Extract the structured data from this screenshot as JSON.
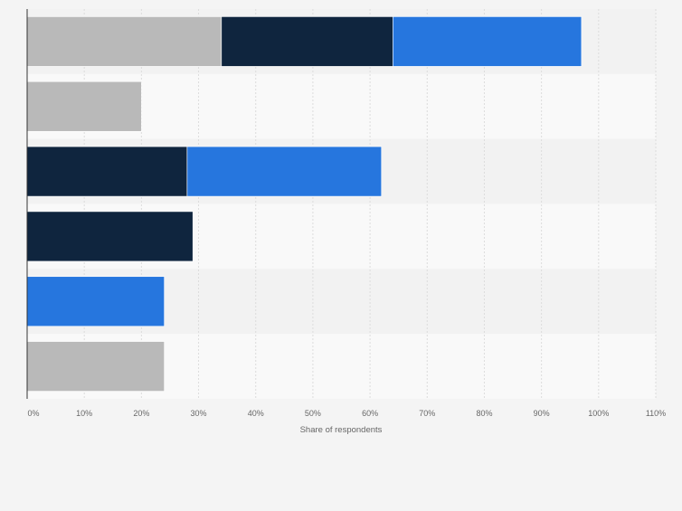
{
  "chart_data": {
    "type": "bar",
    "orientation": "horizontal",
    "stacked": true,
    "categories": [
      "",
      "",
      "",
      "",
      "",
      ""
    ],
    "series": [
      {
        "color": "#b9b9b9",
        "values": [
          34,
          20,
          0,
          0,
          0,
          24
        ]
      },
      {
        "color": "#0f253e",
        "values": [
          30,
          0,
          28,
          29,
          0,
          0
        ]
      },
      {
        "color": "#2676de",
        "values": [
          33,
          0,
          34,
          0,
          24,
          0
        ]
      }
    ],
    "x_ticks": [
      "0%",
      "10%",
      "20%",
      "30%",
      "40%",
      "50%",
      "60%",
      "70%",
      "80%",
      "90%",
      "100%",
      "110%"
    ],
    "xlabel": "Share of respondents",
    "ylabel": "",
    "xlim": [
      0,
      110
    ],
    "grid": true,
    "legend": "none",
    "colors": {
      "page_background": "#f4f4f4",
      "band_light": "#f9f9f9",
      "band_dark": "#f2f2f2",
      "gridline": "#dcdcdc",
      "axis": "#333333",
      "tick_text": "#666666"
    }
  }
}
